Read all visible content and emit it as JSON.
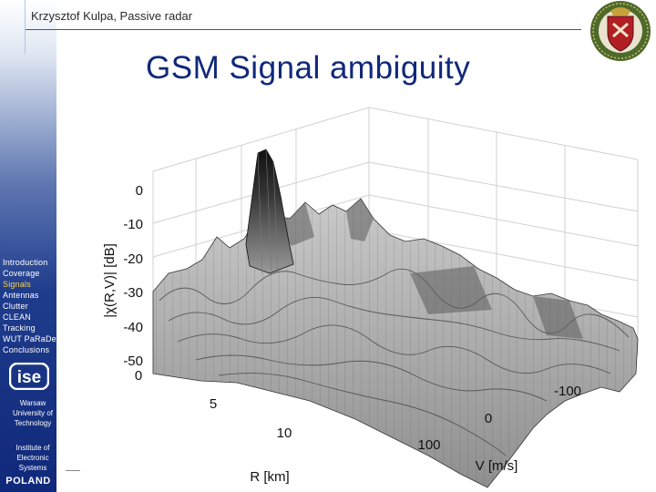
{
  "header": {
    "author_text": "Krzysztof  Kulpa, Passive radar"
  },
  "slide": {
    "title": "GSM Signal ambiguity"
  },
  "sidebar": {
    "items": [
      {
        "label": "Introduction",
        "active": false
      },
      {
        "label": "Coverage",
        "active": false
      },
      {
        "label": "Signals",
        "active": true
      },
      {
        "label": "Antennas",
        "active": false
      },
      {
        "label": "Clutter",
        "active": false
      },
      {
        "label": "CLEAN",
        "active": false
      },
      {
        "label": "Tracking",
        "active": false
      },
      {
        "label": "WUT PaRaDe",
        "active": false
      },
      {
        "label": "Conclusions",
        "active": false
      }
    ],
    "logo_text": "ise",
    "university": [
      "Warsaw",
      "University of",
      "Technology"
    ],
    "institute": [
      "Institute of",
      "Electronic",
      "Systems"
    ],
    "country": "POLAND"
  },
  "plot": {
    "z_label": "|χ(R,V)| [dB]",
    "z_ticks": [
      "0",
      "-10",
      "-20",
      "-30",
      "-40",
      "-50"
    ],
    "r_label": "R [km]",
    "r_ticks": [
      "0",
      "5",
      "10"
    ],
    "v_label": "V [m/s]",
    "v_ticks": [
      "-100",
      "0",
      "100"
    ]
  },
  "colors": {
    "accent": "#10287a",
    "active_item": "#ffd34a"
  }
}
